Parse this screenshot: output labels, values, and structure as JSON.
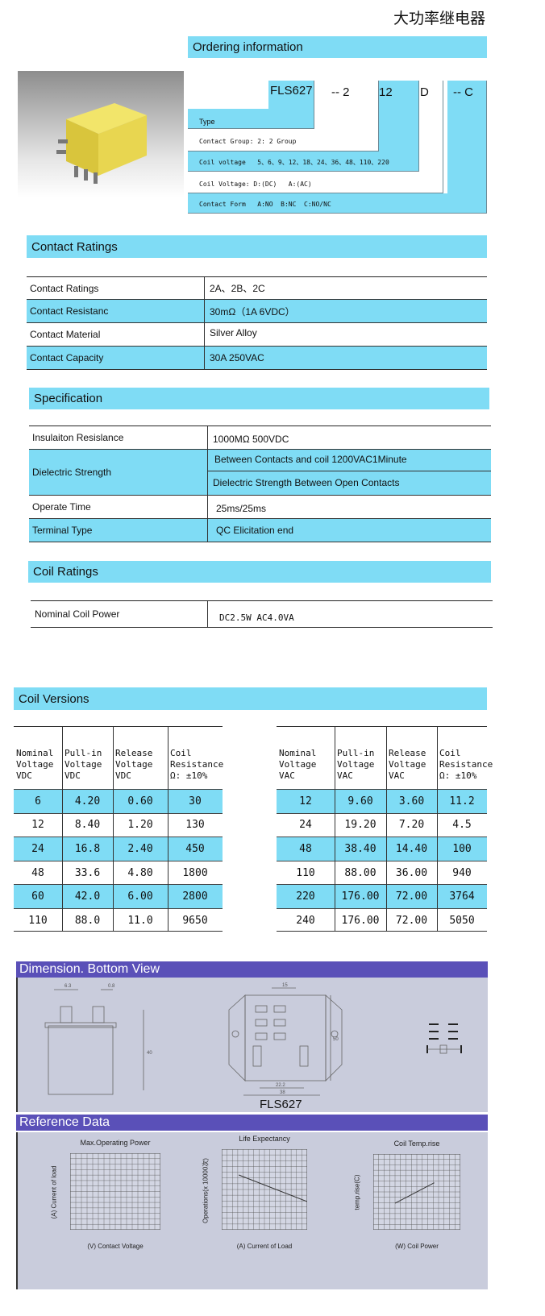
{
  "title": "大功率继电器",
  "ordering": {
    "header": "Ordering information",
    "codes": [
      "FLS627",
      "-- 2",
      "12",
      "D",
      "-- C"
    ],
    "labels": [
      "Type",
      "Contact Group: 2: 2 Group",
      "Coil voltage   5、6、9、12、18、24、36、48、110、220",
      "Coil Voltage: D:(DC)   A:(AC)",
      "Contact Form   A:NO  B:NC  C:NO/NC"
    ]
  },
  "contact_ratings": {
    "header": "Contact  Ratings",
    "rows": [
      {
        "label": "Contact Ratings",
        "value": "2A、2B、2C"
      },
      {
        "label": "Contact Resistanc",
        "value": "30mΩ（1A 6VDC）"
      },
      {
        "label": "Contact Material",
        "value": "Silver Alloy"
      },
      {
        "label": "Contact Capacity",
        "value": "30A 250VAC"
      }
    ]
  },
  "specification": {
    "header": "Specification",
    "insulation": {
      "label": "Insulaiton Resislance",
      "value": "1000MΩ  500VDC"
    },
    "dielectric": {
      "label": "Dielectric Strength",
      "values": [
        "Between Contacts and coil  1200VAC1Minute",
        "Dielectric Strength Between Open Contacts"
      ]
    },
    "operate": {
      "label": "Operate Time",
      "value": "25ms/25ms"
    },
    "terminal": {
      "label": "Terminal Type",
      "value": "QC Elicitation end"
    }
  },
  "coil_ratings": {
    "header": "Coil Ratings",
    "rows": [
      {
        "label": "Nominal Coil Power",
        "value": "DC2.5W  AC4.0VA"
      }
    ]
  },
  "coil_versions": {
    "header": "Coil Versions",
    "dc": {
      "headers": [
        [
          "Nominal",
          "Voltage",
          "VDC"
        ],
        [
          "Pull-in",
          "Voltage",
          "VDC"
        ],
        [
          "Release",
          "Voltage",
          "VDC"
        ],
        [
          "Coil",
          "Resistance",
          "Ω: ±10%"
        ]
      ],
      "rows": [
        [
          "6",
          "4.20",
          "0.60",
          "30"
        ],
        [
          "12",
          "8.40",
          "1.20",
          "130"
        ],
        [
          "24",
          "16.8",
          "2.40",
          "450"
        ],
        [
          "48",
          "33.6",
          "4.80",
          "1800"
        ],
        [
          "60",
          "42.0",
          "6.00",
          "2800"
        ],
        [
          "110",
          "88.0",
          "11.0",
          "9650"
        ]
      ]
    },
    "ac": {
      "headers": [
        [
          "Nominal",
          "Voltage",
          "VAC"
        ],
        [
          "Pull-in",
          "Voltage",
          "VAC"
        ],
        [
          "Release",
          "Voltage",
          "VAC"
        ],
        [
          "Coil",
          "Resistance",
          "Ω: ±10%"
        ]
      ],
      "rows": [
        [
          "12",
          "9.60",
          "3.60",
          "11.2"
        ],
        [
          "24",
          "19.20",
          "7.20",
          "4.5"
        ],
        [
          "48",
          "38.40",
          "14.40",
          "100"
        ],
        [
          "110",
          "88.00",
          "36.00",
          "940"
        ],
        [
          "220",
          "176.00",
          "72.00",
          "3764"
        ],
        [
          "240",
          "176.00",
          "72.00",
          "5050"
        ]
      ]
    }
  },
  "dimension": {
    "header": "Dimension. Bottom View",
    "model": "FLS627",
    "dims": [
      "6.3",
      "0.8",
      "40",
      "15",
      "22.2",
      "38",
      "50"
    ]
  },
  "reference": {
    "header": "Reference Data",
    "charts": [
      {
        "title": "Max.Operating Power",
        "xlabel": "(V) Contact Voltage",
        "ylabel": "(A) Current of load"
      },
      {
        "title": "Life Expectancy",
        "xlabel": "(A) Current of Load",
        "ylabel": "Operations(x 10000次)"
      },
      {
        "title": "Coil Temp.rise",
        "xlabel": "(W) Coil Power",
        "ylabel": "temp.rise(C)"
      }
    ]
  },
  "colors": {
    "accent": "#7fdcf5",
    "section_bar": "#5a50b8",
    "panel": "#c9ccdc"
  }
}
